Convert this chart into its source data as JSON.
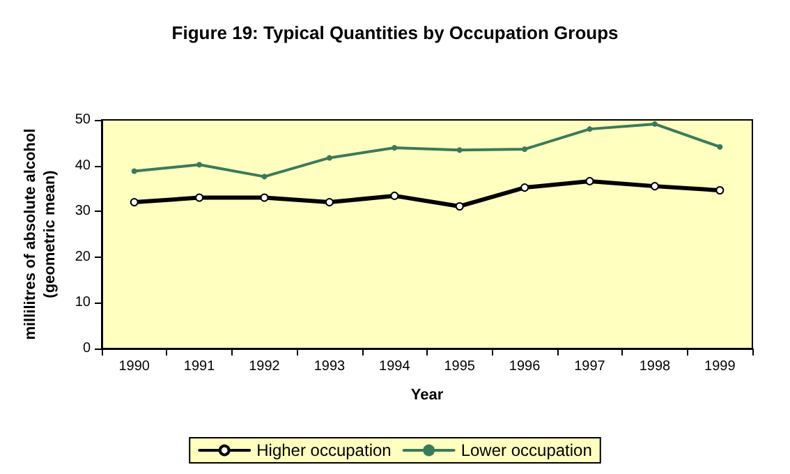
{
  "chart_data": {
    "type": "line",
    "title": "Figure 19: Typical Quantities by Occupation Groups",
    "xlabel": "Year",
    "ylabel": "millilitres of absolute alcohol\n(geometric mean)",
    "categories": [
      "1990",
      "1991",
      "1992",
      "1993",
      "1994",
      "1995",
      "1996",
      "1997",
      "1998",
      "1999"
    ],
    "series": [
      {
        "name": "Higher occupation",
        "color": "#000000",
        "values": [
          32.0,
          33.0,
          33.0,
          32.0,
          33.4,
          31.1,
          35.2,
          36.6,
          35.5,
          34.6
        ]
      },
      {
        "name": "Lower occupation",
        "color": "#3a7a5a",
        "values": [
          38.8,
          40.2,
          37.6,
          41.7,
          43.9,
          43.4,
          43.6,
          48.0,
          49.1,
          44.1
        ]
      }
    ],
    "ylim": [
      0,
      50
    ],
    "yticks": [
      0,
      10,
      20,
      30,
      40,
      50
    ],
    "grid": false,
    "legend": "bottom",
    "marker": "circle",
    "line_style": "solid"
  }
}
